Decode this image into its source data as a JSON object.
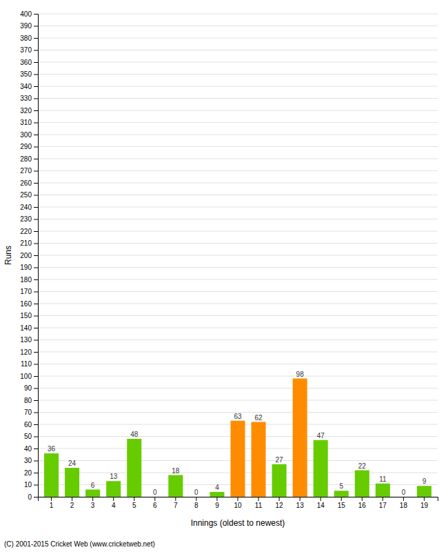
{
  "chart_data": {
    "type": "bar",
    "xlabel": "Innings (oldest to newest)",
    "ylabel": "Runs",
    "annotations": [
      "(C) 2001-2015 Cricket Web (www.cricketweb.net)"
    ],
    "categories": [
      "1",
      "2",
      "3",
      "4",
      "5",
      "6",
      "7",
      "8",
      "9",
      "10",
      "11",
      "12",
      "13",
      "14",
      "15",
      "16",
      "17",
      "18",
      "19"
    ],
    "values": [
      36,
      24,
      6,
      13,
      48,
      0,
      18,
      0,
      4,
      63,
      62,
      27,
      98,
      47,
      5,
      22,
      11,
      0,
      9
    ],
    "colors": [
      "#66cc00",
      "#66cc00",
      "#66cc00",
      "#66cc00",
      "#66cc00",
      "#66cc00",
      "#66cc00",
      "#66cc00",
      "#66cc00",
      "#ff8c00",
      "#ff8c00",
      "#66cc00",
      "#ff8c00",
      "#66cc00",
      "#66cc00",
      "#66cc00",
      "#66cc00",
      "#66cc00",
      "#66cc00"
    ],
    "ylim": [
      0,
      400
    ],
    "yticks": [
      0,
      10,
      20,
      30,
      40,
      50,
      60,
      70,
      80,
      90,
      100,
      110,
      120,
      130,
      140,
      150,
      160,
      170,
      180,
      190,
      200,
      210,
      220,
      230,
      240,
      250,
      260,
      270,
      280,
      290,
      300,
      310,
      320,
      330,
      340,
      350,
      360,
      370,
      380,
      390,
      400
    ],
    "grid": true,
    "data_labels": true
  }
}
